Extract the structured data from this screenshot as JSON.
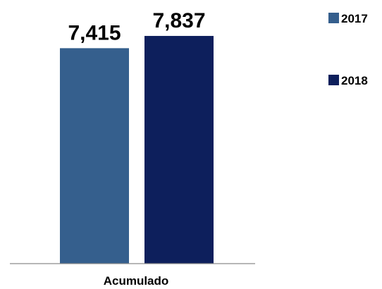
{
  "chart_data": {
    "type": "bar",
    "title": "",
    "xlabel": "",
    "ylabel": "",
    "categories": [
      "Acumulado"
    ],
    "series": [
      {
        "name": "2017",
        "values": [
          7415
        ],
        "color": "#355F8D",
        "label": "7,415"
      },
      {
        "name": "2018",
        "values": [
          7837
        ],
        "color": "#0D1F5C",
        "label": "7,837"
      }
    ],
    "ylim": [
      0,
      8200
    ],
    "grid": false,
    "legend_position": "right"
  }
}
